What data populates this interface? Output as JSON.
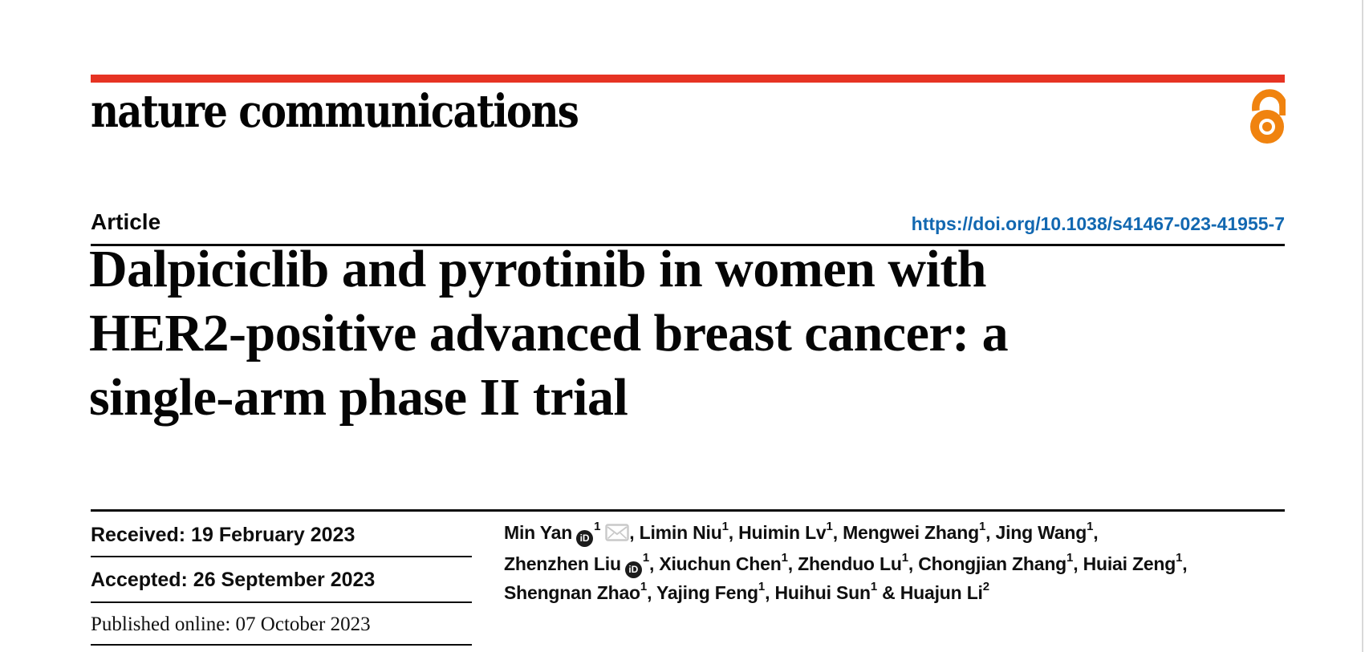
{
  "page": {
    "journal": "nature communications",
    "kicker": "Article",
    "doi": "https://doi.org/10.1038/s41467-023-41955-7",
    "title_lines": [
      "Dalpiciclib and pyrotinib in women with",
      "HER2-positive advanced breast cancer: a",
      "single-arm phase II trial"
    ]
  },
  "dates": {
    "received": "Received: 19 February 2023",
    "accepted": "Accepted: 26 September 2023",
    "published": "Published online: 07 October 2023"
  },
  "authors": {
    "lines": [
      [
        {
          "t": "Min Yan"
        },
        {
          "icon": "orcid"
        },
        {
          "sup": "1"
        },
        {
          "icon": "mail"
        },
        {
          "t": ", Limin Niu"
        },
        {
          "sup": "1"
        },
        {
          "t": ", Huimin Lv"
        },
        {
          "sup": "1"
        },
        {
          "t": ", Mengwei Zhang"
        },
        {
          "sup": "1"
        },
        {
          "t": ", Jing Wang"
        },
        {
          "sup": "1"
        },
        {
          "t": ","
        }
      ],
      [
        {
          "t": "Zhenzhen Liu"
        },
        {
          "icon": "orcid"
        },
        {
          "sup": "1"
        },
        {
          "t": ", Xiuchun Chen"
        },
        {
          "sup": "1"
        },
        {
          "t": ", Zhenduo Lu"
        },
        {
          "sup": "1"
        },
        {
          "t": ", Chongjian Zhang"
        },
        {
          "sup": "1"
        },
        {
          "t": ", Huiai Zeng"
        },
        {
          "sup": "1"
        },
        {
          "t": ","
        }
      ],
      [
        {
          "t": "Shengnan Zhao"
        },
        {
          "sup": "1"
        },
        {
          "t": ", Yajing Feng"
        },
        {
          "sup": "1"
        },
        {
          "t": ", Huihui Sun"
        },
        {
          "sup": "1"
        },
        {
          "t": " & Huajun Li"
        },
        {
          "sup": "2"
        }
      ]
    ]
  },
  "icons": {
    "open_access": "open-access-padlock",
    "orcid_label": "iD",
    "mail": "envelope"
  },
  "colors": {
    "brand_red": "#e63323",
    "link_blue": "#1268b1",
    "open_access_orange": "#f0830f",
    "text_black": "#0d0d0d"
  }
}
